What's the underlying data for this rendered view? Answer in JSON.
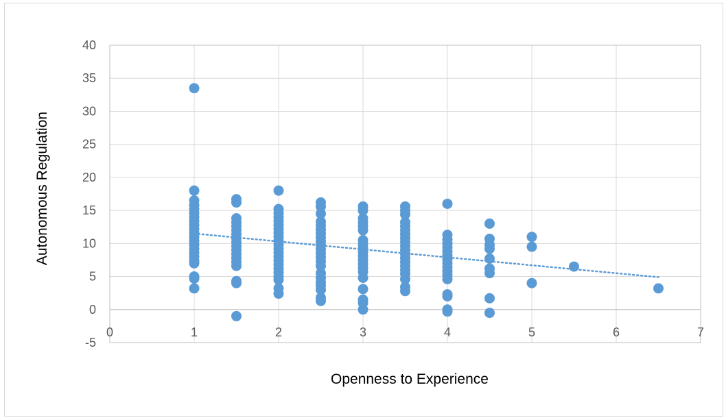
{
  "chart_data": {
    "type": "scatter",
    "title": "",
    "xlabel": "Openness to Experience",
    "ylabel": "Autonomous Regulation",
    "xlim": [
      0,
      7
    ],
    "ylim": [
      -5,
      40
    ],
    "xticks": [
      0,
      1,
      2,
      3,
      4,
      5,
      6,
      7
    ],
    "yticks": [
      -5,
      0,
      5,
      10,
      15,
      20,
      25,
      30,
      35,
      40
    ],
    "grid": true,
    "legend": "none",
    "colors": {
      "marker": "#5b9bd5",
      "trendline": "#5b9bd5",
      "grid": "#d9d9d9"
    },
    "series": [
      {
        "points": [
          [
            1,
            33.5
          ],
          [
            1,
            18
          ],
          [
            1,
            16.5
          ],
          [
            1,
            15.8
          ],
          [
            1,
            15.2
          ],
          [
            1,
            14.6
          ],
          [
            1,
            14
          ],
          [
            1,
            13.4
          ],
          [
            1,
            12.8
          ],
          [
            1,
            12.2
          ],
          [
            1,
            11.6
          ],
          [
            1,
            11
          ],
          [
            1,
            10.4
          ],
          [
            1,
            9.8
          ],
          [
            1,
            9.2
          ],
          [
            1,
            8.6
          ],
          [
            1,
            8
          ],
          [
            1,
            7.4
          ],
          [
            1,
            7
          ],
          [
            1,
            5
          ],
          [
            1,
            4.7
          ],
          [
            1,
            3.2
          ],
          [
            1.5,
            16.7
          ],
          [
            1.5,
            16.2
          ],
          [
            1.5,
            13.8
          ],
          [
            1.5,
            13.2
          ],
          [
            1.5,
            12.6
          ],
          [
            1.5,
            12
          ],
          [
            1.5,
            11.4
          ],
          [
            1.5,
            10.8
          ],
          [
            1.5,
            10.2
          ],
          [
            1.5,
            9.6
          ],
          [
            1.5,
            9
          ],
          [
            1.5,
            8.4
          ],
          [
            1.5,
            7.8
          ],
          [
            1.5,
            7.2
          ],
          [
            1.5,
            6.6
          ],
          [
            1.5,
            4.3
          ],
          [
            1.5,
            4
          ],
          [
            1.5,
            -1
          ],
          [
            2,
            18
          ],
          [
            2,
            15.2
          ],
          [
            2,
            14.6
          ],
          [
            2,
            14
          ],
          [
            2,
            13.4
          ],
          [
            2,
            12.8
          ],
          [
            2,
            12.2
          ],
          [
            2,
            11.6
          ],
          [
            2,
            11
          ],
          [
            2,
            10.4
          ],
          [
            2,
            9.8
          ],
          [
            2,
            9.2
          ],
          [
            2,
            8.6
          ],
          [
            2,
            8
          ],
          [
            2,
            7.4
          ],
          [
            2,
            6.8
          ],
          [
            2,
            6.2
          ],
          [
            2,
            5.6
          ],
          [
            2,
            5
          ],
          [
            2,
            4.5
          ],
          [
            2,
            3.2
          ],
          [
            2,
            2.4
          ],
          [
            2.5,
            16.2
          ],
          [
            2.5,
            15.6
          ],
          [
            2.5,
            14.5
          ],
          [
            2.5,
            13.3
          ],
          [
            2.5,
            12.7
          ],
          [
            2.5,
            12.1
          ],
          [
            2.5,
            11.5
          ],
          [
            2.5,
            10.9
          ],
          [
            2.5,
            10.3
          ],
          [
            2.5,
            9.7
          ],
          [
            2.5,
            9.1
          ],
          [
            2.5,
            8.5
          ],
          [
            2.5,
            7.9
          ],
          [
            2.5,
            7.3
          ],
          [
            2.5,
            6.6
          ],
          [
            2.5,
            5.5
          ],
          [
            2.5,
            4.8
          ],
          [
            2.5,
            4.1
          ],
          [
            2.5,
            3.6
          ],
          [
            2.5,
            3
          ],
          [
            2.5,
            1.8
          ],
          [
            2.5,
            1.3
          ],
          [
            3,
            15.6
          ],
          [
            3,
            15
          ],
          [
            3,
            13.8
          ],
          [
            3,
            13.2
          ],
          [
            3,
            12.6
          ],
          [
            3,
            12
          ],
          [
            3,
            10.5
          ],
          [
            3,
            9.9
          ],
          [
            3,
            9.3
          ],
          [
            3,
            8.7
          ],
          [
            3,
            8.1
          ],
          [
            3,
            7.5
          ],
          [
            3,
            6.9
          ],
          [
            3,
            6.3
          ],
          [
            3,
            5.7
          ],
          [
            3,
            4.8
          ],
          [
            3,
            3.1
          ],
          [
            3,
            1.5
          ],
          [
            3,
            1
          ],
          [
            3,
            0
          ],
          [
            3.5,
            15.6
          ],
          [
            3.5,
            15
          ],
          [
            3.5,
            14.4
          ],
          [
            3.5,
            13.2
          ],
          [
            3.5,
            12.6
          ],
          [
            3.5,
            12
          ],
          [
            3.5,
            11.4
          ],
          [
            3.5,
            10.8
          ],
          [
            3.5,
            10.2
          ],
          [
            3.5,
            9.6
          ],
          [
            3.5,
            9
          ],
          [
            3.5,
            8.4
          ],
          [
            3.5,
            7.8
          ],
          [
            3.5,
            7.2
          ],
          [
            3.5,
            6.6
          ],
          [
            3.5,
            6
          ],
          [
            3.5,
            5.4
          ],
          [
            3.5,
            4.6
          ],
          [
            3.5,
            3.4
          ],
          [
            3.5,
            2.8
          ],
          [
            4,
            16
          ],
          [
            4,
            11.3
          ],
          [
            4,
            10.6
          ],
          [
            4,
            10
          ],
          [
            4,
            9.4
          ],
          [
            4,
            8.8
          ],
          [
            4,
            8.2
          ],
          [
            4,
            7.6
          ],
          [
            4,
            7
          ],
          [
            4,
            6.4
          ],
          [
            4,
            5.8
          ],
          [
            4,
            5.2
          ],
          [
            4,
            4.6
          ],
          [
            4,
            2.3
          ],
          [
            4,
            2
          ],
          [
            4,
            0
          ],
          [
            4,
            -0.3
          ],
          [
            4.5,
            13
          ],
          [
            4.5,
            10.7
          ],
          [
            4.5,
            9.8
          ],
          [
            4.5,
            9.2
          ],
          [
            4.5,
            7.7
          ],
          [
            4.5,
            6.2
          ],
          [
            4.5,
            5.5
          ],
          [
            4.5,
            1.7
          ],
          [
            4.5,
            -0.5
          ],
          [
            5,
            11
          ],
          [
            5,
            9.5
          ],
          [
            5,
            4
          ],
          [
            5.5,
            6.5
          ],
          [
            6.5,
            3.2
          ]
        ]
      }
    ],
    "trendline": {
      "style": "dotted",
      "x": [
        1,
        6.5
      ],
      "y": [
        11.5,
        4.9
      ]
    }
  }
}
